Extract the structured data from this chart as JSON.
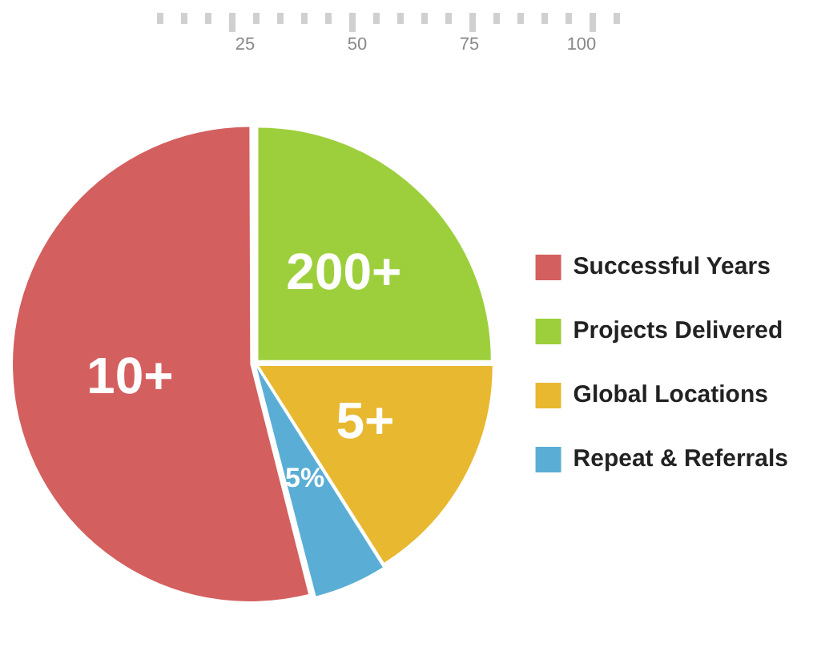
{
  "chart_data": {
    "type": "pie",
    "categories": [
      "Successful Years",
      "Projects Delivered",
      "Global Locations",
      "Repeat & Referrals"
    ],
    "values": [
      54,
      25,
      16,
      5
    ],
    "colors": [
      "#d45f5f",
      "#9dcf3c",
      "#e8b830",
      "#5aaed6"
    ],
    "value_labels": [
      "10+",
      "200+",
      "5+",
      "5%"
    ],
    "legend": "right",
    "annotations": [
      "25",
      "50",
      "75",
      "100"
    ]
  }
}
